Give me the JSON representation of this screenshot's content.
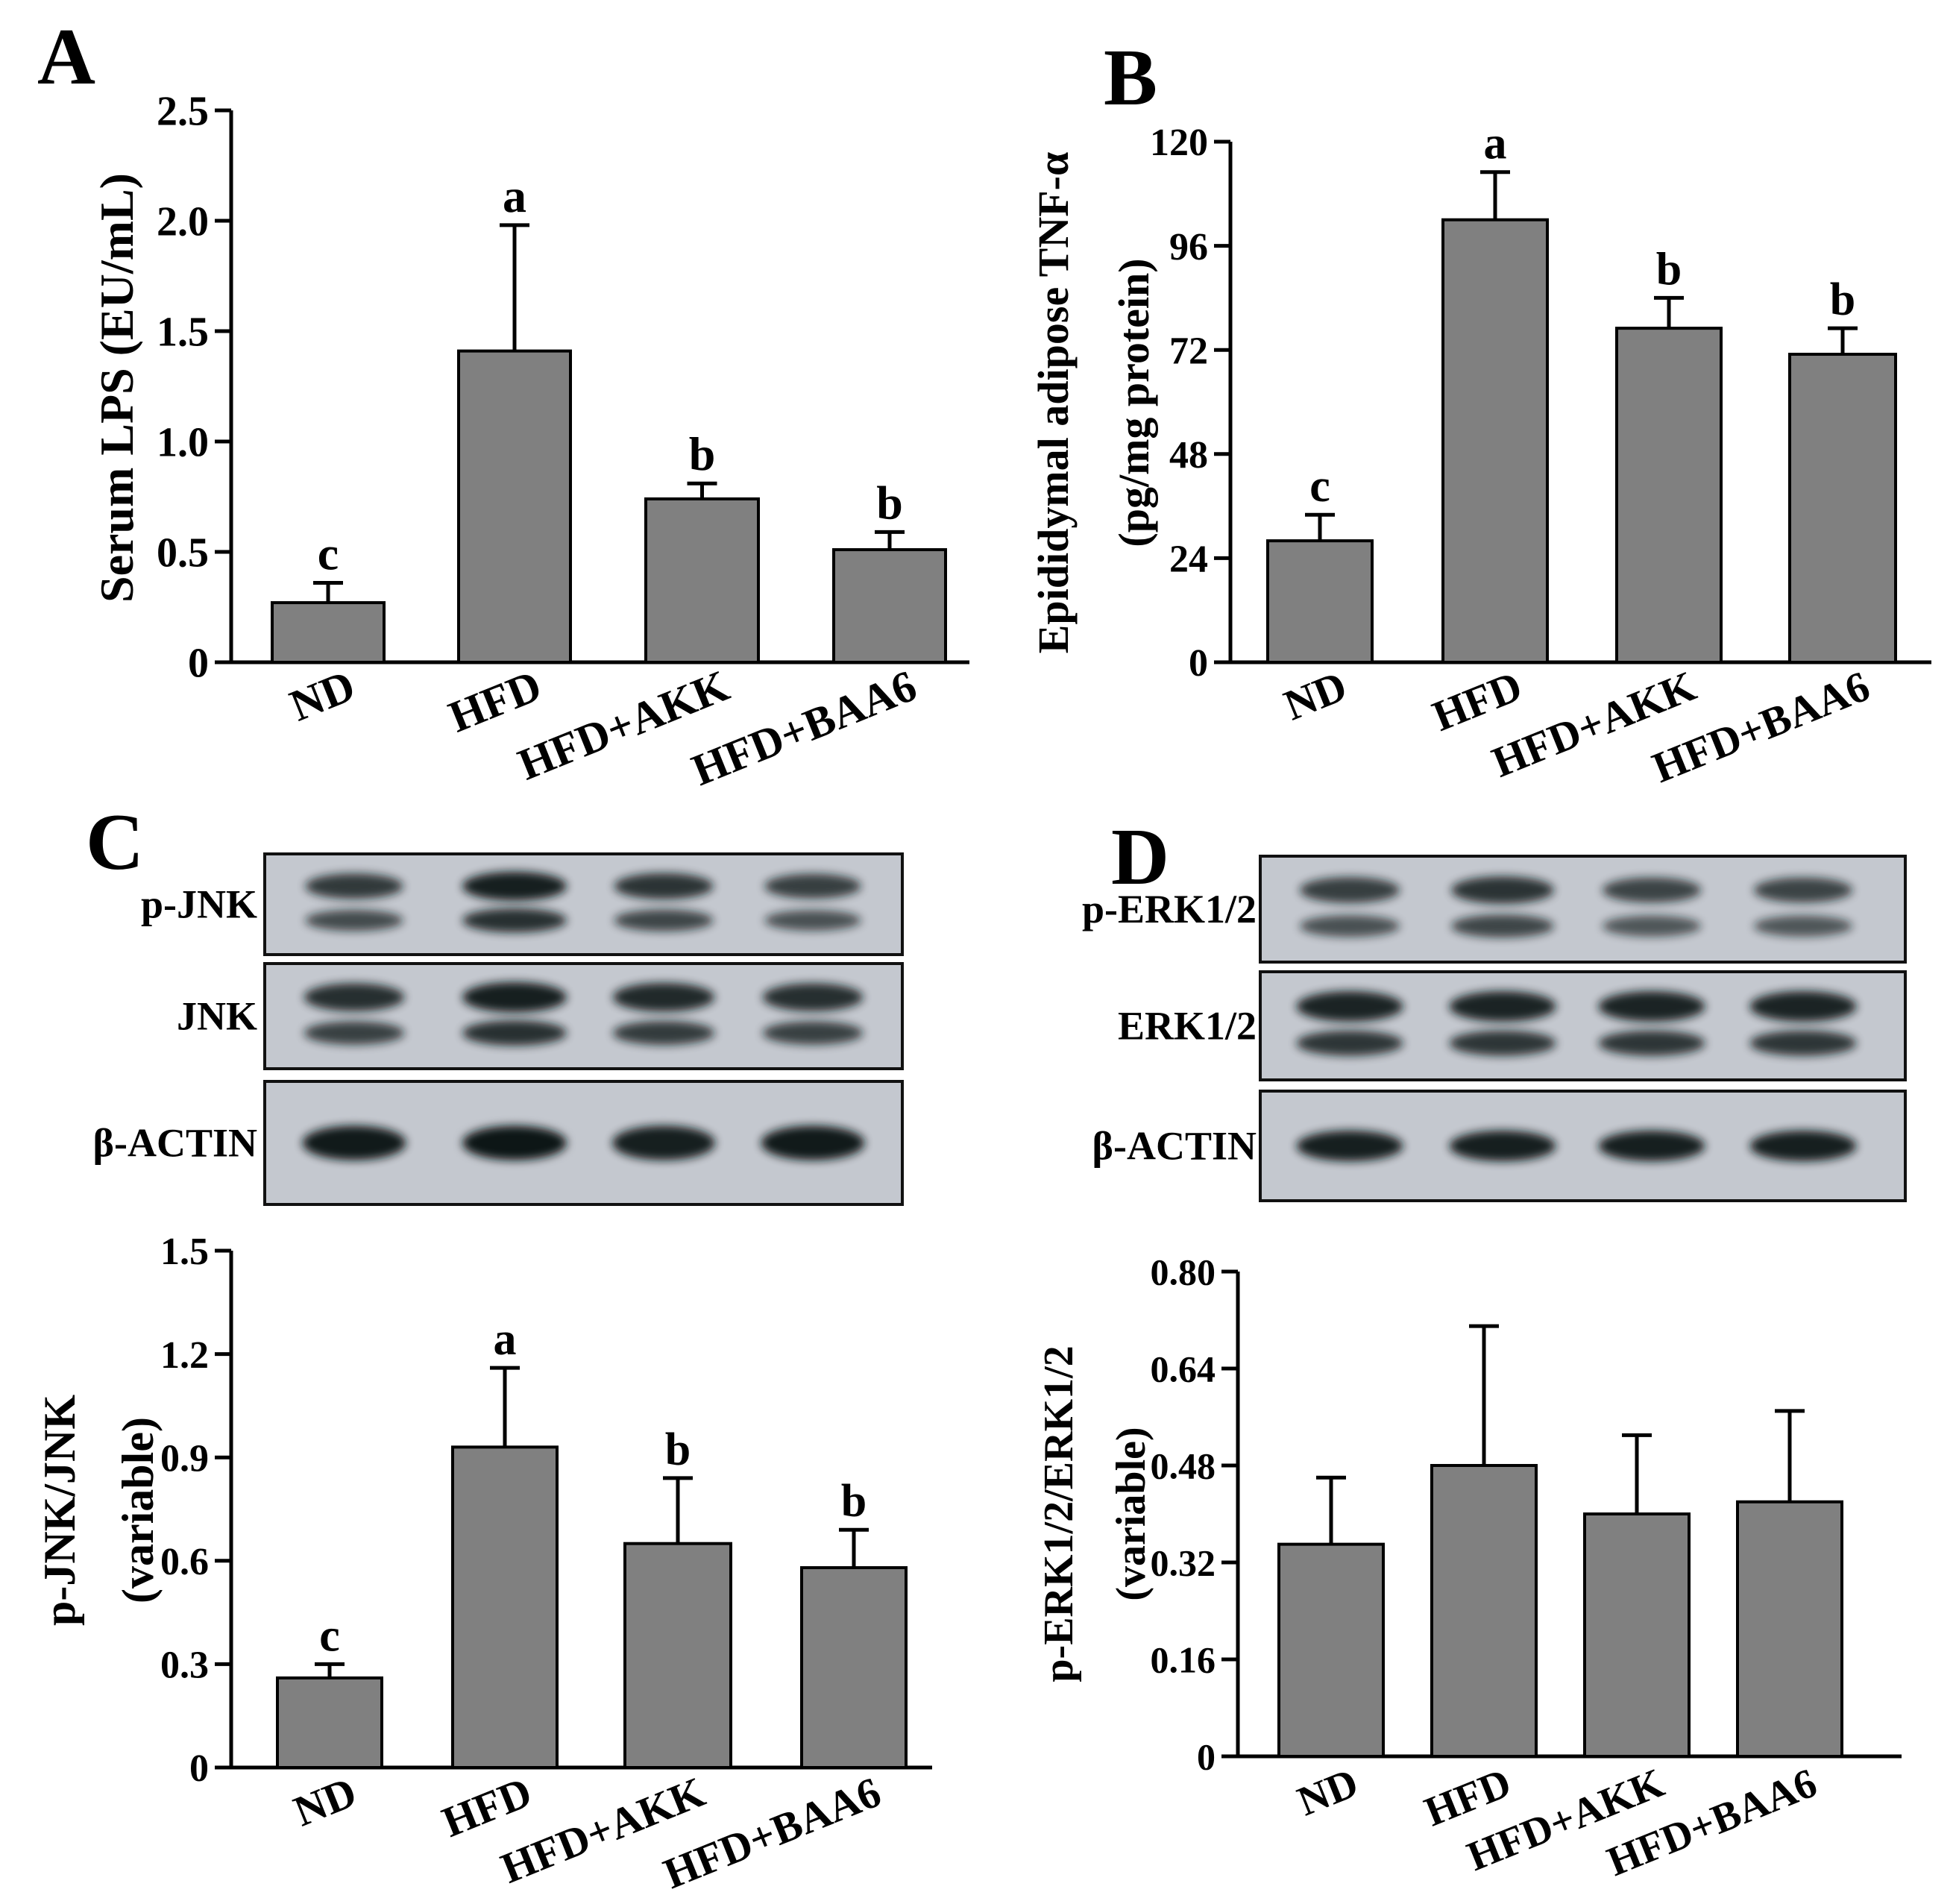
{
  "panels": {
    "A": {
      "letter": "A"
    },
    "B": {
      "letter": "B"
    },
    "C": {
      "letter": "C"
    },
    "D": {
      "letter": "D"
    }
  },
  "colors": {
    "bar": "#808080",
    "axis": "#000000",
    "blot_bg": "#c4c8cf",
    "band": "#101418"
  },
  "blots": {
    "C": {
      "rows": [
        {
          "label": "p-JNK",
          "intensity": [
            0.75,
            1.0,
            0.8,
            0.7
          ],
          "double": true
        },
        {
          "label": "JNK",
          "intensity": [
            0.85,
            1.0,
            0.9,
            0.85
          ],
          "double": true
        },
        {
          "label": "β-ACTIN",
          "intensity": [
            0.95,
            1.0,
            0.9,
            0.95
          ],
          "double": false
        }
      ]
    },
    "D": {
      "rows": [
        {
          "label": "p-ERK1/2",
          "intensity": [
            0.7,
            0.8,
            0.65,
            0.65
          ],
          "double": true
        },
        {
          "label": "ERK1/2",
          "intensity": [
            0.95,
            0.95,
            0.95,
            0.95
          ],
          "double": true
        },
        {
          "label": "β-ACTIN",
          "intensity": [
            0.9,
            0.9,
            0.9,
            0.9
          ],
          "double": false
        }
      ]
    }
  },
  "chart_data": [
    {
      "panel": "A",
      "type": "bar",
      "categories": [
        "ND",
        "HFD",
        "HFD+AKK",
        "HFD+BAA6"
      ],
      "values": [
        0.27,
        1.41,
        0.74,
        0.51
      ],
      "errors": [
        0.09,
        0.57,
        0.07,
        0.08
      ],
      "annotations": [
        "c",
        "a",
        "b",
        "b"
      ],
      "title": "",
      "xlabel": "",
      "ylabel": "Serum LPS (EU/mL)",
      "ylabel2": "",
      "ylim": [
        0,
        2.5
      ],
      "yticks": [
        "0",
        "0.5",
        "1.0",
        "1.5",
        "2.0",
        "2.5"
      ]
    },
    {
      "panel": "B",
      "type": "bar",
      "categories": [
        "ND",
        "HFD",
        "HFD+AKK",
        "HFD+BAA6"
      ],
      "values": [
        28,
        102,
        77,
        71
      ],
      "errors": [
        6,
        11,
        7,
        6
      ],
      "annotations": [
        "c",
        "a",
        "b",
        "b"
      ],
      "title": "",
      "xlabel": "",
      "ylabel": "Epididymal adipose TNF-α",
      "ylabel2": "(pg/mg protein)",
      "ylim": [
        0,
        120
      ],
      "yticks": [
        "0",
        "24",
        "48",
        "72",
        "96",
        "120"
      ]
    },
    {
      "panel": "C",
      "type": "bar",
      "categories": [
        "ND",
        "HFD",
        "HFD+AKK",
        "HFD+BAA6"
      ],
      "values": [
        0.26,
        0.93,
        0.65,
        0.58
      ],
      "errors": [
        0.04,
        0.23,
        0.19,
        0.11
      ],
      "annotations": [
        "c",
        "a",
        "b",
        "b"
      ],
      "title": "",
      "xlabel": "",
      "ylabel": "p-JNK/JNK",
      "ylabel2": "(variable)",
      "ylim": [
        0,
        1.5
      ],
      "yticks": [
        "0",
        "0.3",
        "0.6",
        "0.9",
        "1.2",
        "1.5"
      ]
    },
    {
      "panel": "D",
      "type": "bar",
      "categories": [
        "ND",
        "HFD",
        "HFD+AKK",
        "HFD+BAA6"
      ],
      "values": [
        0.35,
        0.48,
        0.4,
        0.42
      ],
      "errors": [
        0.11,
        0.23,
        0.13,
        0.15
      ],
      "annotations": [
        "",
        "",
        "",
        ""
      ],
      "title": "",
      "xlabel": "",
      "ylabel": "p-ERK1/2/ERK1/2",
      "ylabel2": "(variable)",
      "ylim": [
        0,
        0.8
      ],
      "yticks": [
        "0",
        "0.16",
        "0.32",
        "0.48",
        "0.64",
        "0.80"
      ]
    }
  ]
}
